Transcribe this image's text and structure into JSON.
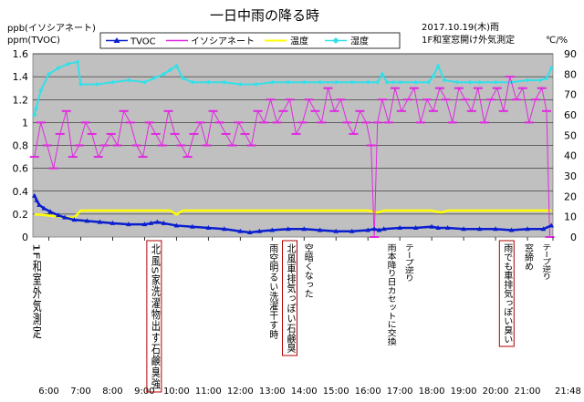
{
  "chart_data": {
    "type": "line",
    "title": "一日中雨の降る時",
    "subtitle_line1": "2017.10.19(木)雨",
    "subtitle_line2": "1F和室窓開け外気測定",
    "left_unit_line1": "ppb(イソシアネート)",
    "left_unit_line2": "ppm(TVOC)",
    "right_unit": "℃/%",
    "y_left": {
      "min": 0,
      "max": 1.6,
      "ticks": [
        "0",
        "0.2",
        "0.4",
        "0.6",
        "0.8",
        "1",
        "1.2",
        "1.4",
        "1.6"
      ]
    },
    "y_right": {
      "min": 0,
      "max": 90,
      "ticks": [
        "0",
        "10",
        "20",
        "30",
        "40",
        "50",
        "60",
        "70",
        "80",
        "90"
      ]
    },
    "x_ticks": [
      "6:00",
      "7:00",
      "8:00",
      "9:00",
      "10:00",
      "11:00",
      "12:00",
      "13:00",
      "14:00",
      "15:00",
      "16:00",
      "17:00",
      "18:00",
      "19:00",
      "20:00",
      "21:00",
      "21:48"
    ],
    "legend": [
      "TVOC",
      "イソシアネート",
      "温度",
      "湿度"
    ],
    "colors": {
      "TVOC": "#0a1ecf",
      "iso": "#e028e0",
      "temp": "#ffff00",
      "hum": "#33e0e8",
      "plot_bg": "#c0c0c0"
    },
    "annotations": [
      {
        "text": "1F和室外気測定",
        "boxed": false
      },
      {
        "text": "北風S家洗濯物出す石鹸臭強",
        "boxed": true
      },
      {
        "text": "雨空明るい洗濯干す時",
        "boxed": false
      },
      {
        "text": "北風車排気っぽい石鹸臭",
        "boxed": true
      },
      {
        "text": "空暗くなった",
        "boxed": false
      },
      {
        "text": "雨本降り日カセットに交換",
        "boxed": false
      },
      {
        "text": "テープ逆り",
        "boxed": false
      },
      {
        "text": "雨でも車排気っぽい臭い",
        "boxed": true
      },
      {
        "text": "窓締め",
        "boxed": false
      },
      {
        "text": "テープ逆り",
        "boxed": false
      }
    ],
    "series": [
      {
        "name": "TVOC",
        "axis": "left",
        "x": [
          5.55,
          5.62,
          5.7,
          5.85,
          6.05,
          6.3,
          6.5,
          6.8,
          7.2,
          7.6,
          8.0,
          8.5,
          9.0,
          9.2,
          9.4,
          9.6,
          10.0,
          10.5,
          11.0,
          11.5,
          12.0,
          12.3,
          12.6,
          13.0,
          13.5,
          14.0,
          14.5,
          15.0,
          15.5,
          16.0,
          16.2,
          16.35,
          16.5,
          17.0,
          17.5,
          18.0,
          18.2,
          18.5,
          19.0,
          19.5,
          20.0,
          20.5,
          21.0,
          21.5,
          21.75
        ],
        "values": [
          0.36,
          0.32,
          0.28,
          0.25,
          0.22,
          0.19,
          0.17,
          0.15,
          0.14,
          0.13,
          0.12,
          0.11,
          0.11,
          0.12,
          0.13,
          0.12,
          0.1,
          0.09,
          0.08,
          0.07,
          0.05,
          0.04,
          0.05,
          0.06,
          0.07,
          0.07,
          0.06,
          0.05,
          0.05,
          0.06,
          0.07,
          0.06,
          0.07,
          0.08,
          0.08,
          0.09,
          0.08,
          0.08,
          0.07,
          0.07,
          0.07,
          0.06,
          0.07,
          0.07,
          0.1
        ]
      },
      {
        "name": "温度",
        "axis": "right",
        "x": [
          5.55,
          5.7,
          6.0,
          6.3,
          6.6,
          6.8,
          7.0,
          8.0,
          9.0,
          9.8,
          10.0,
          10.2,
          11.0,
          12.0,
          13.0,
          14.0,
          15.0,
          16.0,
          16.3,
          16.5,
          17.0,
          18.0,
          18.3,
          18.5,
          19.0,
          20.0,
          21.0,
          21.5,
          21.75
        ],
        "values": [
          11,
          11,
          10.5,
          10,
          9.5,
          9.5,
          13,
          13,
          13,
          13,
          11,
          13,
          13,
          13,
          13,
          13,
          13,
          13,
          12,
          13,
          13,
          13,
          12,
          13,
          13,
          13,
          13,
          13,
          13
        ]
      },
      {
        "name": "湿度",
        "axis": "right",
        "x": [
          5.55,
          5.6,
          5.75,
          6.0,
          6.3,
          6.6,
          6.9,
          7.0,
          7.5,
          8.0,
          8.5,
          9.0,
          9.3,
          9.6,
          9.8,
          10.0,
          10.2,
          10.5,
          11.0,
          11.5,
          12.0,
          12.5,
          13.0,
          13.5,
          14.0,
          14.5,
          15.0,
          15.5,
          16.0,
          16.3,
          16.45,
          16.6,
          16.8,
          17.0,
          17.5,
          17.9,
          18.05,
          18.2,
          18.4,
          18.8,
          19.2,
          19.5,
          20.0,
          20.5,
          21.0,
          21.4,
          21.6,
          21.75
        ],
        "values": [
          60,
          63,
          72,
          80,
          83,
          85,
          86,
          75,
          75,
          76,
          77,
          76,
          78,
          80,
          82,
          84,
          78,
          76,
          76,
          76,
          75,
          75,
          76,
          76,
          76,
          76,
          76,
          76,
          76,
          76,
          80,
          76,
          76,
          76,
          76,
          76,
          79,
          84,
          77,
          76,
          76,
          76,
          76,
          76,
          77,
          77,
          78,
          83
        ]
      },
      {
        "name": "イソシアネート",
        "axis": "left",
        "x": [
          5.55,
          5.75,
          5.95,
          6.15,
          6.35,
          6.55,
          6.75,
          6.95,
          7.15,
          7.35,
          7.55,
          7.75,
          7.95,
          8.15,
          8.35,
          8.55,
          8.75,
          8.95,
          9.15,
          9.35,
          9.55,
          9.75,
          9.95,
          10.15,
          10.35,
          10.55,
          10.75,
          10.95,
          11.15,
          11.35,
          11.55,
          11.75,
          11.95,
          12.15,
          12.35,
          12.55,
          12.75,
          12.95,
          13.15,
          13.35,
          13.55,
          13.75,
          13.95,
          14.15,
          14.35,
          14.55,
          14.75,
          14.95,
          15.15,
          15.35,
          15.55,
          15.75,
          15.95,
          16.1,
          16.2,
          16.3,
          16.45,
          16.65,
          16.85,
          17.05,
          17.25,
          17.45,
          17.65,
          17.85,
          18.05,
          18.25,
          18.45,
          18.65,
          18.85,
          19.05,
          19.25,
          19.45,
          19.65,
          19.85,
          20.05,
          20.25,
          20.45,
          20.65,
          20.85,
          21.05,
          21.25,
          21.45,
          21.6,
          21.7
        ],
        "values": [
          0.7,
          1.0,
          0.8,
          0.6,
          0.9,
          1.1,
          0.7,
          0.8,
          1.0,
          0.9,
          0.7,
          0.8,
          0.9,
          0.8,
          1.1,
          1.0,
          0.8,
          0.7,
          1.0,
          0.9,
          0.8,
          1.1,
          0.9,
          0.8,
          0.7,
          0.9,
          1.0,
          0.8,
          1.1,
          1.0,
          0.9,
          0.8,
          1.0,
          0.9,
          0.8,
          1.1,
          1.0,
          1.2,
          1.0,
          1.1,
          1.2,
          0.9,
          1.0,
          1.2,
          1.1,
          1.0,
          1.3,
          1.1,
          1.2,
          1.0,
          0.9,
          1.1,
          1.0,
          0.8,
          0.0,
          1.0,
          1.2,
          1.0,
          1.3,
          1.1,
          1.2,
          1.3,
          1.0,
          1.2,
          1.1,
          1.3,
          1.2,
          1.0,
          1.3,
          1.2,
          1.1,
          1.3,
          1.0,
          1.2,
          1.3,
          1.1,
          1.4,
          1.2,
          1.3,
          1.0,
          1.2,
          1.3,
          1.1,
          0.0
        ]
      }
    ]
  }
}
